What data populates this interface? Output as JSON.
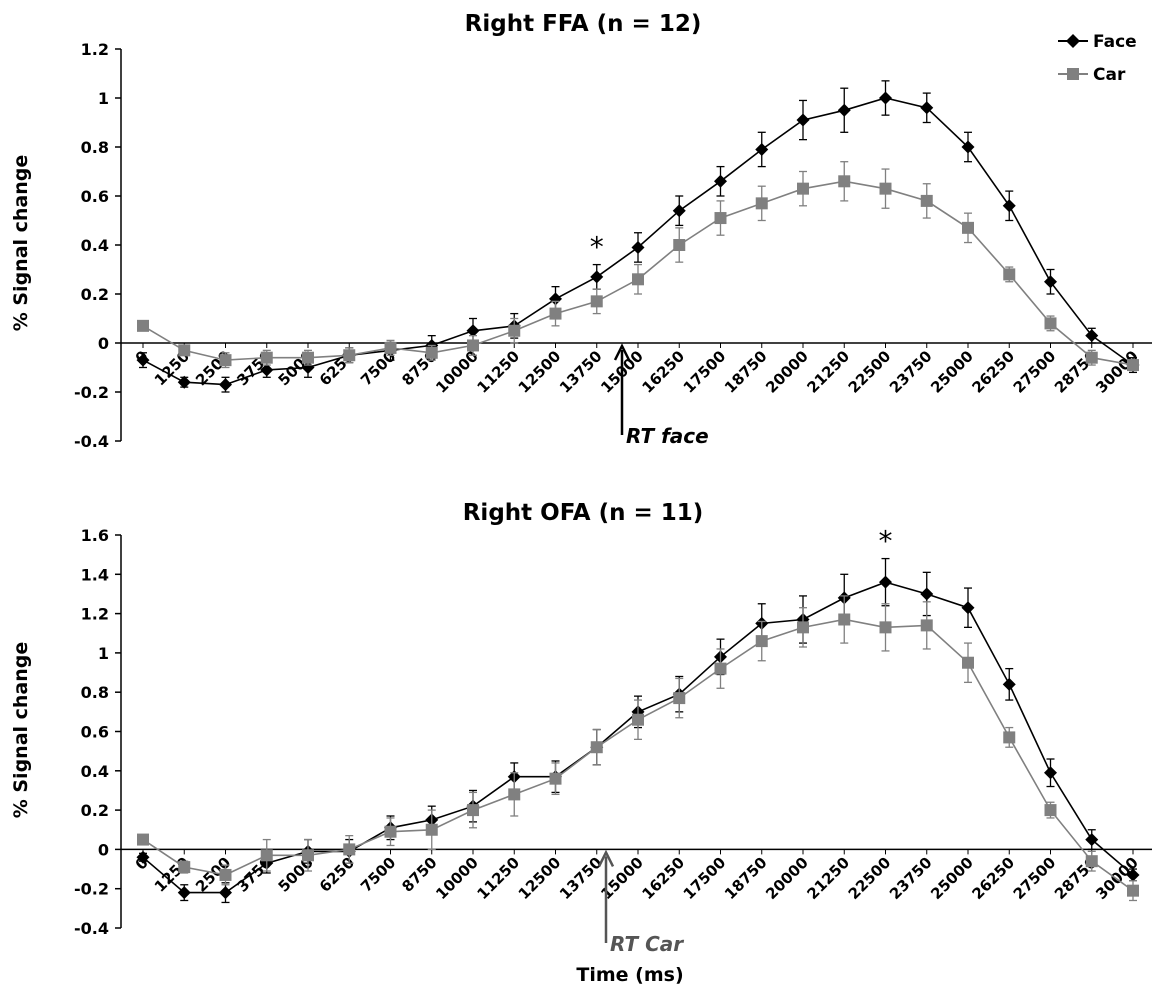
{
  "colors": {
    "face": "#000000",
    "car": "#808080",
    "rt_face": "#000000",
    "rt_car": "#555555"
  },
  "legend": {
    "face_label": "Face",
    "car_label": "Car",
    "face_marker": "diamond",
    "car_marker": "square",
    "placement": "top-right"
  },
  "xlabel_bottom": "Time (ms)",
  "chart_data": [
    {
      "type": "line",
      "title": "Right FFA (n = 12)",
      "ylabel": "% Signal change",
      "xlabel": "",
      "ylim": [
        -0.4,
        1.2
      ],
      "yticks": [
        -0.4,
        -0.2,
        0,
        0.2,
        0.4,
        0.6,
        0.8,
        1,
        1.2
      ],
      "ytick_labels": [
        "-0.4",
        "-0.2",
        "0",
        "0.2",
        "0.4",
        "0.6",
        "0.8",
        "1",
        "1.2"
      ],
      "categories": [
        "0",
        "1250",
        "2500",
        "3750",
        "5000",
        "6250",
        "7500",
        "8750",
        "10000",
        "11250",
        "12500",
        "13750",
        "15000",
        "16250",
        "17500",
        "18750",
        "20000",
        "21250",
        "22500",
        "23750",
        "25000",
        "26250",
        "27500",
        "28750",
        "30000"
      ],
      "series": [
        {
          "name": "Face",
          "values": [
            -0.07,
            -0.16,
            -0.17,
            -0.11,
            -0.1,
            -0.05,
            -0.03,
            -0.01,
            0.05,
            0.07,
            0.18,
            0.27,
            0.39,
            0.54,
            0.66,
            0.79,
            0.91,
            0.95,
            1.0,
            0.96,
            0.8,
            0.56,
            0.25,
            0.03,
            -0.09
          ],
          "errors": [
            0.03,
            0.02,
            0.03,
            0.03,
            0.04,
            0.03,
            0.04,
            0.04,
            0.05,
            0.05,
            0.05,
            0.05,
            0.06,
            0.06,
            0.06,
            0.07,
            0.08,
            0.09,
            0.07,
            0.06,
            0.06,
            0.06,
            0.05,
            0.03,
            0.03
          ]
        },
        {
          "name": "Car",
          "values": [
            0.07,
            -0.03,
            -0.07,
            -0.06,
            -0.06,
            -0.05,
            -0.02,
            -0.04,
            -0.01,
            0.05,
            0.12,
            0.17,
            0.26,
            0.4,
            0.51,
            0.57,
            0.63,
            0.66,
            0.63,
            0.58,
            0.47,
            0.28,
            0.08,
            -0.06,
            -0.09
          ],
          "errors": [
            0.02,
            0.02,
            0.03,
            0.03,
            0.03,
            0.03,
            0.03,
            0.03,
            0.04,
            0.05,
            0.05,
            0.05,
            0.06,
            0.07,
            0.07,
            0.07,
            0.07,
            0.08,
            0.08,
            0.07,
            0.06,
            0.03,
            0.03,
            0.03,
            0.02
          ]
        }
      ],
      "significance": [
        {
          "category": "13750",
          "label": "*"
        }
      ],
      "rt_marker": {
        "label": "RT face",
        "x_ms": 15000
      }
    },
    {
      "type": "line",
      "title": "Right OFA (n = 11)",
      "ylabel": "% Signal change",
      "xlabel": "Time (ms)",
      "ylim": [
        -0.4,
        1.6
      ],
      "yticks": [
        -0.4,
        -0.2,
        0,
        0.2,
        0.4,
        0.6,
        0.8,
        1,
        1.2,
        1.4,
        1.6
      ],
      "ytick_labels": [
        "-0.4",
        "-0.2",
        "0",
        "0.2",
        "0.4",
        "0.6",
        "0.8",
        "1",
        "1.2",
        "1.4",
        "1.6"
      ],
      "categories": [
        "0",
        "1250",
        "2500",
        "3750",
        "5000",
        "6250",
        "7500",
        "8750",
        "10000",
        "11250",
        "12500",
        "13750",
        "15000",
        "16250",
        "17500",
        "18750",
        "20000",
        "21250",
        "22500",
        "23750",
        "25000",
        "26250",
        "27500",
        "28750",
        "30000"
      ],
      "series": [
        {
          "name": "Face",
          "values": [
            -0.04,
            -0.22,
            -0.22,
            -0.07,
            -0.01,
            -0.01,
            0.11,
            0.15,
            0.22,
            0.37,
            0.37,
            0.52,
            0.7,
            0.79,
            0.98,
            1.15,
            1.17,
            1.28,
            1.36,
            1.3,
            1.23,
            0.84,
            0.39,
            0.05,
            -0.13
          ],
          "errors": [
            0.02,
            0.04,
            0.05,
            0.05,
            0.06,
            0.06,
            0.06,
            0.07,
            0.08,
            0.07,
            0.08,
            0.09,
            0.08,
            0.09,
            0.09,
            0.1,
            0.12,
            0.12,
            0.12,
            0.11,
            0.1,
            0.08,
            0.07,
            0.05,
            0.03
          ]
        },
        {
          "name": "Car",
          "values": [
            0.05,
            -0.09,
            -0.13,
            -0.03,
            -0.03,
            0.0,
            0.09,
            0.1,
            0.2,
            0.28,
            0.36,
            0.52,
            0.66,
            0.77,
            0.92,
            1.06,
            1.13,
            1.17,
            1.13,
            1.14,
            0.95,
            0.57,
            0.2,
            -0.06,
            -0.21
          ],
          "errors": [
            0.02,
            0.03,
            0.05,
            0.08,
            0.08,
            0.07,
            0.07,
            0.1,
            0.09,
            0.11,
            0.08,
            0.09,
            0.1,
            0.1,
            0.1,
            0.1,
            0.1,
            0.12,
            0.12,
            0.12,
            0.1,
            0.05,
            0.04,
            0.05,
            0.05
          ]
        }
      ],
      "significance": [
        {
          "category": "22500",
          "label": "*"
        }
      ],
      "rt_marker": {
        "label": "RT Car",
        "x_ms": 15000
      }
    }
  ]
}
